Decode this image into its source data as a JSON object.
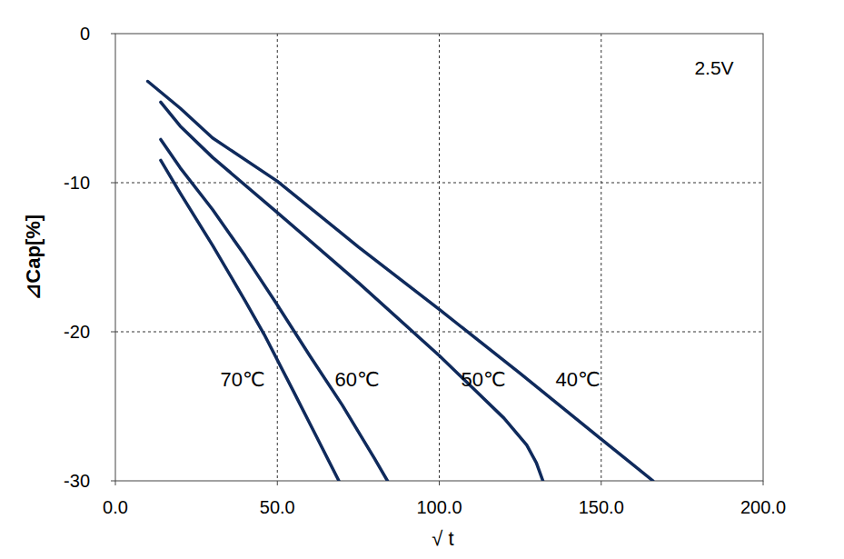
{
  "chart_data": {
    "type": "line",
    "annotation": "2.5V",
    "x_label": "√ t",
    "y_label": "⊿Cap[%]",
    "xlim": [
      0,
      200
    ],
    "ylim": [
      -30,
      0
    ],
    "xticks": [
      {
        "value": 0,
        "label": "0.0"
      },
      {
        "value": 50,
        "label": "50.0"
      },
      {
        "value": 100,
        "label": "100.0"
      },
      {
        "value": 150,
        "label": "150.0"
      },
      {
        "value": 200,
        "label": "200.0"
      }
    ],
    "yticks": [
      -30,
      -20,
      -10,
      0
    ],
    "grid": true,
    "color": "#0f2a5c",
    "series": [
      {
        "name": "70℃",
        "x": [
          14,
          20,
          30,
          40,
          46,
          55,
          62,
          69
        ],
        "values": [
          -8.5,
          -10.7,
          -14.2,
          -17.9,
          -20.2,
          -24.0,
          -27.0,
          -30.0
        ]
      },
      {
        "name": "60℃",
        "x": [
          14,
          20,
          30,
          40,
          50,
          60,
          70,
          80,
          84
        ],
        "values": [
          -7.1,
          -9.0,
          -11.8,
          -14.9,
          -18.2,
          -21.6,
          -24.9,
          -28.5,
          -30.0
        ]
      },
      {
        "name": "50℃",
        "x": [
          14,
          20,
          30,
          50,
          75,
          100,
          120,
          127,
          130,
          132
        ],
        "values": [
          -4.6,
          -6.2,
          -8.3,
          -12.0,
          -16.7,
          -21.6,
          -25.8,
          -27.6,
          -28.8,
          -30.0
        ]
      },
      {
        "name": "40℃",
        "x": [
          10,
          20,
          30,
          50,
          75,
          100,
          125,
          150,
          166
        ],
        "values": [
          -3.2,
          -5.0,
          -7.0,
          -9.9,
          -14.3,
          -18.5,
          -22.8,
          -27.2,
          -30.0
        ]
      }
    ]
  }
}
